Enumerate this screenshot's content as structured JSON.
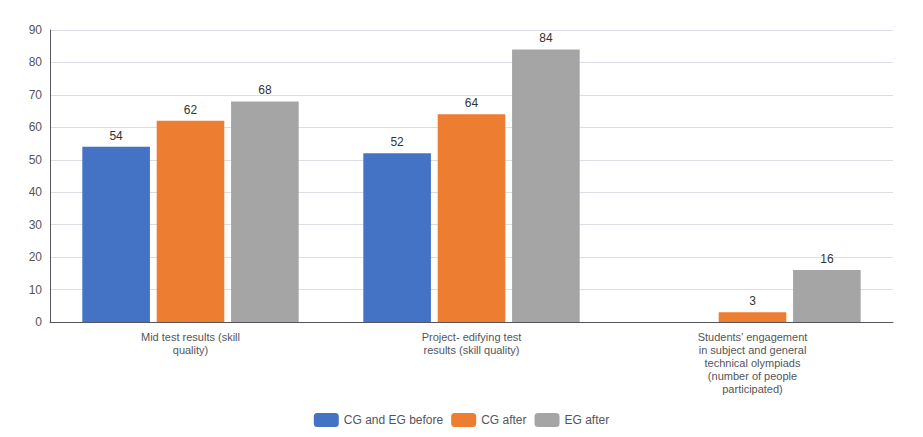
{
  "chart_data": {
    "type": "bar",
    "categories": [
      "Mid test results (skill\nquality)",
      "Project- edifying test\nresults (skill quality)",
      "Students’ engagement\nin subject and general\ntechnical olympiads\n(number of people\nparticipated)"
    ],
    "series": [
      {
        "name": "CG and EG before",
        "color": "#4472C4",
        "values": [
          54,
          52,
          0
        ]
      },
      {
        "name": "CG after",
        "color": "#ED7D31",
        "values": [
          62,
          64,
          3
        ]
      },
      {
        "name": "EG after",
        "color": "#A5A5A5",
        "values": [
          68,
          84,
          16
        ]
      }
    ],
    "ylim": [
      0,
      90
    ],
    "yticks": [
      0,
      10,
      20,
      30,
      40,
      50,
      60,
      70,
      80,
      90
    ],
    "grid": true,
    "legend": "bottom",
    "data_labels": true
  }
}
